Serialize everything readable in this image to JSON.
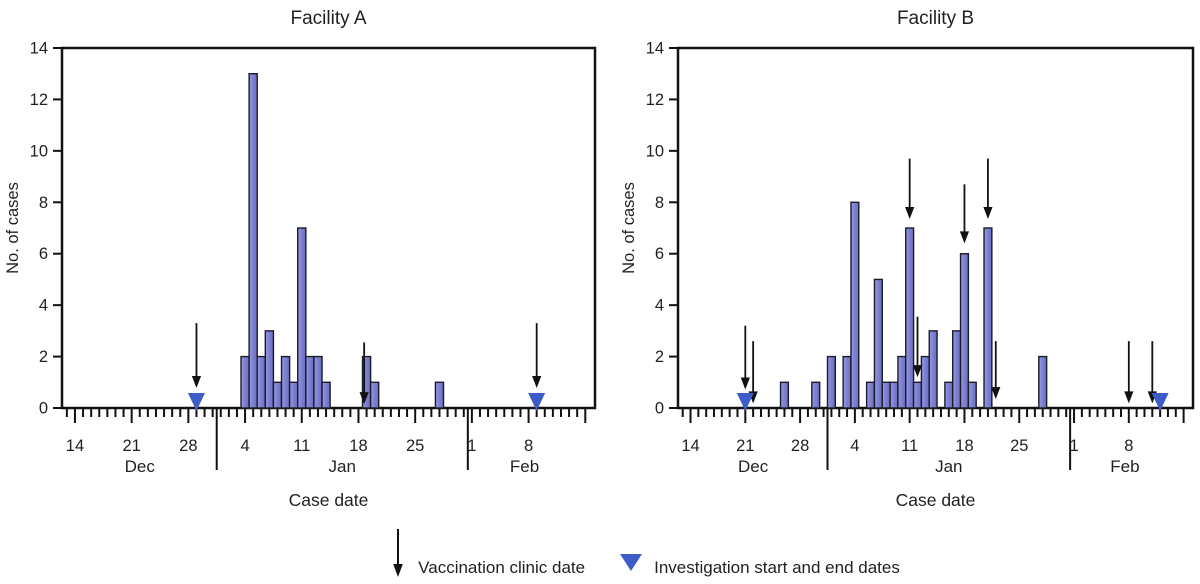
{
  "figure": {
    "legend": {
      "vaccination": "Vaccination clinic date",
      "investigation": "Investigation start and end dates"
    },
    "colors": {
      "bar_fill_light": "#9a9ce4",
      "bar_fill_mid": "#8184d4",
      "bar_fill_dark": "#6a6ec0",
      "bar_border": "#1b1b28",
      "triangle": "#3e5cc7",
      "arrow": "#111111",
      "axis": "#111111",
      "text": "#231f20"
    }
  },
  "chart_data": [
    {
      "type": "bar",
      "title": "Facility A",
      "xlabel": "Case date",
      "ylabel": "No. of cases",
      "ylim": [
        0,
        14
      ],
      "yticks": [
        0,
        2,
        4,
        6,
        8,
        10,
        12,
        14
      ],
      "x_axis": {
        "day_index_origin": "Dec 13",
        "total_days": 65,
        "week_ticks": [
          {
            "day": 1,
            "label": "14"
          },
          {
            "day": 8,
            "label": "21"
          },
          {
            "day": 15,
            "label": "28"
          },
          {
            "day": 22,
            "label": "4"
          },
          {
            "day": 29,
            "label": "11"
          },
          {
            "day": 36,
            "label": "18"
          },
          {
            "day": 43,
            "label": "25"
          },
          {
            "day": 50,
            "label": "1"
          },
          {
            "day": 57,
            "label": "8"
          },
          {
            "day": 64,
            "label": ""
          }
        ],
        "month_labels": [
          {
            "day": 9,
            "label": "Dec"
          },
          {
            "day": 34,
            "label": "Jan"
          },
          {
            "day": 56.5,
            "label": "Feb"
          }
        ],
        "month_separators": [
          18.5,
          49.5
        ]
      },
      "cases": [
        {
          "date": "Jan 4",
          "day": 22,
          "count": 2
        },
        {
          "date": "Jan 5",
          "day": 23,
          "count": 13
        },
        {
          "date": "Jan 6",
          "day": 24,
          "count": 2
        },
        {
          "date": "Jan 7",
          "day": 25,
          "count": 3
        },
        {
          "date": "Jan 8",
          "day": 26,
          "count": 1
        },
        {
          "date": "Jan 9",
          "day": 27,
          "count": 2
        },
        {
          "date": "Jan 10",
          "day": 28,
          "count": 1
        },
        {
          "date": "Jan 11",
          "day": 29,
          "count": 7
        },
        {
          "date": "Jan 12",
          "day": 30,
          "count": 2
        },
        {
          "date": "Jan 13",
          "day": 31,
          "count": 2
        },
        {
          "date": "Jan 14",
          "day": 32,
          "count": 1
        },
        {
          "date": "Jan 19",
          "day": 37,
          "count": 2
        },
        {
          "date": "Jan 20",
          "day": 38,
          "count": 1
        },
        {
          "date": "Jan 28",
          "day": 46,
          "count": 1
        }
      ],
      "vaccination_clinics": [
        {
          "date": "Dec 29",
          "day": 16,
          "arrow_top": 3.3,
          "arrow_tip": 0.78
        },
        {
          "date": "Jan 19",
          "day": 36.7,
          "arrow_top": 2.55,
          "arrow_tip": 0.15
        },
        {
          "date": "Feb 9",
          "day": 58,
          "arrow_top": 3.3,
          "arrow_tip": 0.78
        }
      ],
      "investigation": [
        {
          "date": "Dec 29",
          "day": 16,
          "role": "start"
        },
        {
          "date": "Feb 9",
          "day": 58,
          "role": "end"
        }
      ]
    },
    {
      "type": "bar",
      "title": "Facility B",
      "xlabel": "Case date",
      "ylabel": "No. of cases",
      "ylim": [
        0,
        14
      ],
      "yticks": [
        0,
        2,
        4,
        6,
        8,
        10,
        12,
        14
      ],
      "x_axis": {
        "day_index_origin": "Dec 13",
        "total_days": 65,
        "week_ticks": [
          {
            "day": 1,
            "label": "14"
          },
          {
            "day": 8,
            "label": "21"
          },
          {
            "day": 15,
            "label": "28"
          },
          {
            "day": 22,
            "label": "4"
          },
          {
            "day": 29,
            "label": "11"
          },
          {
            "day": 36,
            "label": "18"
          },
          {
            "day": 43,
            "label": "25"
          },
          {
            "day": 50,
            "label": "1"
          },
          {
            "day": 57,
            "label": "8"
          },
          {
            "day": 64,
            "label": ""
          }
        ],
        "month_labels": [
          {
            "day": 9,
            "label": "Dec"
          },
          {
            "day": 34,
            "label": "Jan"
          },
          {
            "day": 56.5,
            "label": "Feb"
          }
        ],
        "month_separators": [
          18.5,
          49.5
        ]
      },
      "cases": [
        {
          "date": "Dec 26",
          "day": 13,
          "count": 1
        },
        {
          "date": "Dec 30",
          "day": 17,
          "count": 1
        },
        {
          "date": "Jan 1",
          "day": 19,
          "count": 2
        },
        {
          "date": "Jan 3",
          "day": 21,
          "count": 2
        },
        {
          "date": "Jan 4",
          "day": 22,
          "count": 8
        },
        {
          "date": "Jan 6",
          "day": 24,
          "count": 1
        },
        {
          "date": "Jan 7",
          "day": 25,
          "count": 5
        },
        {
          "date": "Jan 8",
          "day": 26,
          "count": 1
        },
        {
          "date": "Jan 9",
          "day": 27,
          "count": 1
        },
        {
          "date": "Jan 10",
          "day": 28,
          "count": 2
        },
        {
          "date": "Jan 11",
          "day": 29,
          "count": 7
        },
        {
          "date": "Jan 12",
          "day": 30,
          "count": 1
        },
        {
          "date": "Jan 13",
          "day": 31,
          "count": 2
        },
        {
          "date": "Jan 14",
          "day": 32,
          "count": 3
        },
        {
          "date": "Jan 16",
          "day": 34,
          "count": 1
        },
        {
          "date": "Jan 17",
          "day": 35,
          "count": 3
        },
        {
          "date": "Jan 18",
          "day": 36,
          "count": 6
        },
        {
          "date": "Jan 19",
          "day": 37,
          "count": 1
        },
        {
          "date": "Jan 21",
          "day": 39,
          "count": 7
        },
        {
          "date": "Jan 28",
          "day": 46,
          "count": 2
        }
      ],
      "vaccination_clinics": [
        {
          "date": "Dec 21",
          "day": 8,
          "arrow_top": 3.2,
          "arrow_tip": 0.72
        },
        {
          "date": "Dec 22",
          "day": 9,
          "arrow_top": 2.6,
          "arrow_tip": 0.18
        },
        {
          "date": "Jan 11",
          "day": 29,
          "arrow_top": 9.7,
          "arrow_tip": 7.35
        },
        {
          "date": "Jan 12",
          "day": 30,
          "arrow_top": 3.55,
          "arrow_tip": 1.2
        },
        {
          "date": "Jan 18",
          "day": 36,
          "arrow_top": 8.7,
          "arrow_tip": 6.4
        },
        {
          "date": "Jan 21",
          "day": 39,
          "arrow_top": 9.7,
          "arrow_tip": 7.35
        },
        {
          "date": "Jan 22",
          "day": 40,
          "arrow_top": 2.6,
          "arrow_tip": 0.35
        },
        {
          "date": "Feb 8",
          "day": 57,
          "arrow_top": 2.6,
          "arrow_tip": 0.18
        },
        {
          "date": "Feb 11",
          "day": 60,
          "arrow_top": 2.6,
          "arrow_tip": 0.18
        }
      ],
      "investigation": [
        {
          "date": "Dec 21",
          "day": 8,
          "role": "start"
        },
        {
          "date": "Feb 12",
          "day": 61,
          "role": "end"
        }
      ]
    }
  ]
}
